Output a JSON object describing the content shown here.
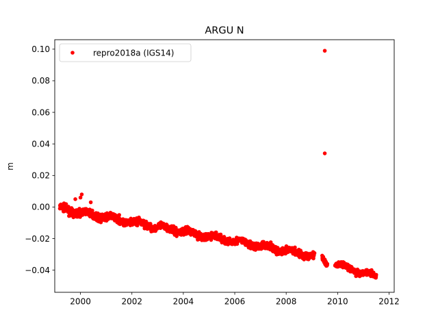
{
  "chart_data": {
    "type": "scatter",
    "title": "ARGU N",
    "xlabel": "",
    "ylabel": "m",
    "xlim": [
      1999.0,
      2012.2
    ],
    "ylim": [
      -0.054,
      0.106
    ],
    "grid": false,
    "legend_position": "top-left",
    "x_ticks": [
      2000,
      2002,
      2004,
      2006,
      2008,
      2010,
      2012
    ],
    "x_tick_labels": [
      "2000",
      "2002",
      "2004",
      "2006",
      "2008",
      "2010",
      "2012"
    ],
    "y_ticks": [
      -0.04,
      -0.02,
      0.0,
      0.02,
      0.04,
      0.06,
      0.08,
      0.1
    ],
    "y_tick_labels": [
      "−0.04",
      "−0.02",
      "0.00",
      "0.02",
      "0.04",
      "0.06",
      "0.08",
      "0.10"
    ],
    "series": [
      {
        "name": "repro2018a (IGS14)",
        "color": "#ff0000",
        "marker": "circle",
        "trend_segments": [
          {
            "x_start": 1999.2,
            "x_end": 2009.1,
            "y_start": -0.001,
            "y_end": -0.031,
            "noise": 0.002
          },
          {
            "x_start": 2009.4,
            "x_end": 2009.6,
            "y_start": -0.033,
            "y_end": -0.036,
            "noise": 0.0015
          },
          {
            "x_start": 2009.9,
            "x_end": 2011.5,
            "y_start": -0.036,
            "y_end": -0.044,
            "noise": 0.0017
          }
        ],
        "highlighted_points": [
          {
            "x": 2000.0,
            "y": 0.006
          },
          {
            "x": 1999.8,
            "y": 0.005
          },
          {
            "x": 2000.05,
            "y": 0.008
          },
          {
            "x": 2000.4,
            "y": 0.003
          }
        ],
        "outliers": [
          {
            "x": 2009.5,
            "y": 0.099
          },
          {
            "x": 2009.5,
            "y": 0.034
          }
        ]
      }
    ]
  }
}
